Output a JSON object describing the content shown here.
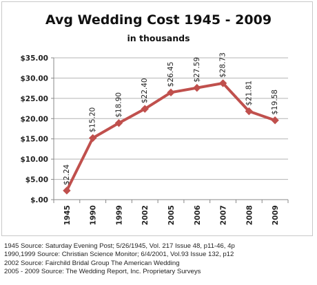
{
  "chart_data": {
    "type": "line",
    "title": "Avg Wedding  Cost 1945 - 2009",
    "subtitle": "in thousands",
    "xlabel": "",
    "ylabel": "",
    "categories": [
      "1945",
      "1990",
      "1999",
      "2002",
      "2005",
      "2006",
      "2007",
      "2008",
      "2009"
    ],
    "series": [
      {
        "values": [
          2.24,
          15.2,
          18.9,
          22.4,
          26.45,
          27.59,
          28.73,
          21.81,
          19.58
        ],
        "data_labels": [
          "$2.24",
          "$15.20",
          "$18.90",
          "$22.40",
          "$26.45",
          "$27.59",
          "$28.73",
          "$21.81",
          "$19.58"
        ],
        "color": "#c0504d"
      }
    ],
    "ylim": [
      0,
      35
    ],
    "yticks": [
      0,
      5,
      10,
      15,
      20,
      25,
      30,
      35
    ],
    "ytick_labels": [
      "$.00",
      "$5.00",
      "$10.00",
      "$15.00",
      "$20.00",
      "$25.00",
      "$30.00",
      "$35.00"
    ],
    "grid": true,
    "legend": "none",
    "gridline_color": "#b3b3b3"
  },
  "sources": [
    "1945 Source: Saturday Evening Post; 5/26/1945, Vol. 217 Issue 48, p11-46, 4p",
    "1990,1999 Source: Christian Science Monitor; 6/4/2001, Vol.93 Issue 132, p12",
    "2002 Source: Fairchild Bridal Group The American Wedding",
    "2005 - 2009 Source: The Wedding Report, Inc. Proprietary Surveys"
  ]
}
